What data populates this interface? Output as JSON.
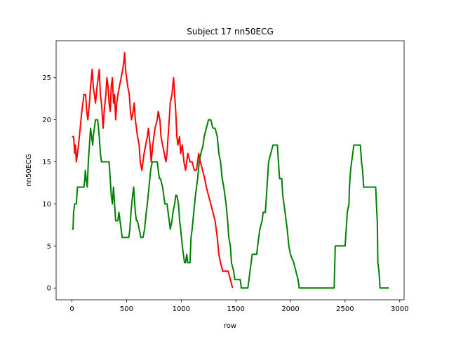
{
  "chart_data": {
    "type": "line",
    "title": "Subject 17 nn50ECG",
    "xlabel": "row",
    "ylabel": "nn50ECG",
    "xlim": [
      -145,
      3040
    ],
    "ylim": [
      -1.4,
      29.4
    ],
    "xticks": [
      0,
      500,
      1000,
      1500,
      2000,
      2500,
      3000
    ],
    "yticks": [
      0,
      5,
      10,
      15,
      20,
      25
    ],
    "grid": false,
    "legend": "none",
    "series": [
      {
        "color": "#ff0000",
        "points": [
          [
            0,
            18
          ],
          [
            15,
            18
          ],
          [
            25,
            16
          ],
          [
            32,
            17
          ],
          [
            40,
            15
          ],
          [
            50,
            16
          ],
          [
            60,
            17
          ],
          [
            75,
            19
          ],
          [
            90,
            21
          ],
          [
            100,
            22
          ],
          [
            110,
            23
          ],
          [
            125,
            23
          ],
          [
            135,
            21
          ],
          [
            145,
            20
          ],
          [
            160,
            22
          ],
          [
            170,
            24
          ],
          [
            178,
            25
          ],
          [
            185,
            26
          ],
          [
            195,
            24
          ],
          [
            205,
            23
          ],
          [
            215,
            22
          ],
          [
            230,
            24
          ],
          [
            240,
            25
          ],
          [
            250,
            26
          ],
          [
            260,
            23
          ],
          [
            270,
            22
          ],
          [
            285,
            19
          ],
          [
            295,
            21
          ],
          [
            310,
            23
          ],
          [
            320,
            25
          ],
          [
            330,
            24
          ],
          [
            340,
            22
          ],
          [
            350,
            21
          ],
          [
            360,
            24
          ],
          [
            370,
            25
          ],
          [
            380,
            22
          ],
          [
            390,
            23
          ],
          [
            400,
            20
          ],
          [
            410,
            22
          ],
          [
            420,
            23
          ],
          [
            435,
            24
          ],
          [
            450,
            25
          ],
          [
            465,
            26
          ],
          [
            475,
            27
          ],
          [
            482,
            28
          ],
          [
            490,
            26
          ],
          [
            500,
            25
          ],
          [
            510,
            24
          ],
          [
            525,
            23
          ],
          [
            535,
            21
          ],
          [
            545,
            20
          ],
          [
            560,
            21
          ],
          [
            570,
            22
          ],
          [
            580,
            20
          ],
          [
            590,
            19
          ],
          [
            600,
            18
          ],
          [
            615,
            17
          ],
          [
            625,
            15
          ],
          [
            640,
            14
          ],
          [
            660,
            16
          ],
          [
            675,
            17
          ],
          [
            690,
            18
          ],
          [
            700,
            19
          ],
          [
            715,
            17
          ],
          [
            725,
            15
          ],
          [
            740,
            17
          ],
          [
            760,
            19
          ],
          [
            780,
            20
          ],
          [
            790,
            21
          ],
          [
            805,
            20
          ],
          [
            815,
            18
          ],
          [
            830,
            17
          ],
          [
            845,
            16
          ],
          [
            860,
            15
          ],
          [
            870,
            16
          ],
          [
            880,
            18
          ],
          [
            890,
            20
          ],
          [
            900,
            22
          ],
          [
            915,
            23
          ],
          [
            930,
            25
          ],
          [
            945,
            22
          ],
          [
            950,
            21
          ],
          [
            960,
            18
          ],
          [
            970,
            17
          ],
          [
            985,
            18
          ],
          [
            995,
            16
          ],
          [
            1010,
            17
          ],
          [
            1025,
            15
          ],
          [
            1040,
            14
          ],
          [
            1060,
            16
          ],
          [
            1080,
            15
          ],
          [
            1100,
            15
          ],
          [
            1120,
            14
          ],
          [
            1140,
            14
          ],
          [
            1160,
            16
          ],
          [
            1175,
            15
          ],
          [
            1195,
            14
          ],
          [
            1215,
            13
          ],
          [
            1230,
            12
          ],
          [
            1250,
            11
          ],
          [
            1270,
            10
          ],
          [
            1290,
            9
          ],
          [
            1310,
            8
          ],
          [
            1330,
            6
          ],
          [
            1345,
            4
          ],
          [
            1360,
            3
          ],
          [
            1380,
            2
          ],
          [
            1400,
            2
          ],
          [
            1430,
            2
          ],
          [
            1450,
            1
          ],
          [
            1470,
            0
          ]
        ]
      },
      {
        "color": "#008000",
        "points": [
          [
            0,
            7
          ],
          [
            10,
            7
          ],
          [
            15,
            9
          ],
          [
            25,
            10
          ],
          [
            40,
            10
          ],
          [
            50,
            12
          ],
          [
            80,
            12
          ],
          [
            110,
            12
          ],
          [
            118,
            13
          ],
          [
            122,
            14
          ],
          [
            130,
            13
          ],
          [
            140,
            12
          ],
          [
            150,
            15
          ],
          [
            160,
            17
          ],
          [
            170,
            19
          ],
          [
            180,
            18
          ],
          [
            190,
            17
          ],
          [
            195,
            18
          ],
          [
            205,
            19
          ],
          [
            215,
            20
          ],
          [
            235,
            20
          ],
          [
            250,
            18
          ],
          [
            260,
            16
          ],
          [
            270,
            15
          ],
          [
            285,
            15
          ],
          [
            300,
            15
          ],
          [
            340,
            15
          ],
          [
            350,
            13
          ],
          [
            360,
            11
          ],
          [
            370,
            10
          ],
          [
            380,
            12
          ],
          [
            390,
            10
          ],
          [
            400,
            8
          ],
          [
            420,
            8
          ],
          [
            430,
            9
          ],
          [
            440,
            8
          ],
          [
            460,
            6
          ],
          [
            480,
            6
          ],
          [
            500,
            6
          ],
          [
            520,
            6
          ],
          [
            530,
            7
          ],
          [
            540,
            9
          ],
          [
            555,
            11
          ],
          [
            565,
            12
          ],
          [
            570,
            11
          ],
          [
            580,
            9
          ],
          [
            590,
            8
          ],
          [
            600,
            8
          ],
          [
            615,
            7
          ],
          [
            630,
            6
          ],
          [
            650,
            6
          ],
          [
            665,
            7
          ],
          [
            680,
            9
          ],
          [
            690,
            10
          ],
          [
            705,
            12
          ],
          [
            720,
            14
          ],
          [
            735,
            15
          ],
          [
            760,
            15
          ],
          [
            780,
            15
          ],
          [
            790,
            14
          ],
          [
            800,
            13
          ],
          [
            810,
            13
          ],
          [
            830,
            12
          ],
          [
            850,
            10
          ],
          [
            870,
            10
          ],
          [
            880,
            9
          ],
          [
            890,
            8
          ],
          [
            900,
            7
          ],
          [
            915,
            8
          ],
          [
            925,
            9
          ],
          [
            940,
            10
          ],
          [
            950,
            11
          ],
          [
            960,
            11
          ],
          [
            975,
            10
          ],
          [
            985,
            8
          ],
          [
            995,
            7
          ],
          [
            1010,
            5
          ],
          [
            1020,
            4
          ],
          [
            1030,
            3
          ],
          [
            1040,
            3
          ],
          [
            1050,
            4
          ],
          [
            1060,
            3
          ],
          [
            1070,
            3
          ],
          [
            1080,
            3
          ],
          [
            1090,
            6
          ],
          [
            1100,
            7
          ],
          [
            1115,
            9
          ],
          [
            1130,
            11
          ],
          [
            1150,
            13
          ],
          [
            1165,
            15
          ],
          [
            1180,
            16
          ],
          [
            1200,
            17
          ],
          [
            1210,
            18
          ],
          [
            1230,
            19
          ],
          [
            1250,
            20
          ],
          [
            1270,
            20
          ],
          [
            1290,
            19
          ],
          [
            1310,
            19
          ],
          [
            1330,
            18
          ],
          [
            1345,
            16
          ],
          [
            1360,
            15
          ],
          [
            1375,
            13
          ],
          [
            1390,
            12
          ],
          [
            1410,
            10
          ],
          [
            1425,
            8
          ],
          [
            1435,
            6
          ],
          [
            1450,
            5
          ],
          [
            1460,
            3
          ],
          [
            1480,
            2
          ],
          [
            1490,
            1
          ],
          [
            1540,
            1
          ],
          [
            1550,
            0
          ],
          [
            1610,
            0
          ],
          [
            1630,
            2
          ],
          [
            1650,
            4
          ],
          [
            1690,
            4
          ],
          [
            1700,
            5
          ],
          [
            1720,
            7
          ],
          [
            1740,
            8
          ],
          [
            1750,
            9
          ],
          [
            1770,
            9
          ],
          [
            1780,
            11
          ],
          [
            1790,
            13
          ],
          [
            1800,
            15
          ],
          [
            1820,
            16
          ],
          [
            1840,
            17
          ],
          [
            1880,
            17
          ],
          [
            1890,
            15
          ],
          [
            1900,
            13
          ],
          [
            1920,
            13
          ],
          [
            1930,
            11
          ],
          [
            1950,
            9
          ],
          [
            1970,
            7
          ],
          [
            1985,
            5
          ],
          [
            2000,
            4
          ],
          [
            2030,
            3
          ],
          [
            2050,
            2
          ],
          [
            2070,
            1
          ],
          [
            2080,
            0
          ],
          [
            2400,
            0
          ],
          [
            2410,
            5
          ],
          [
            2500,
            5
          ],
          [
            2510,
            7
          ],
          [
            2520,
            9
          ],
          [
            2535,
            10
          ],
          [
            2540,
            12
          ],
          [
            2550,
            14
          ],
          [
            2560,
            15
          ],
          [
            2580,
            17
          ],
          [
            2640,
            17
          ],
          [
            2650,
            15
          ],
          [
            2660,
            14
          ],
          [
            2670,
            12
          ],
          [
            2780,
            12
          ],
          [
            2790,
            9
          ],
          [
            2795,
            8
          ],
          [
            2800,
            3
          ],
          [
            2810,
            2
          ],
          [
            2820,
            0
          ],
          [
            2900,
            0
          ]
        ]
      }
    ]
  }
}
